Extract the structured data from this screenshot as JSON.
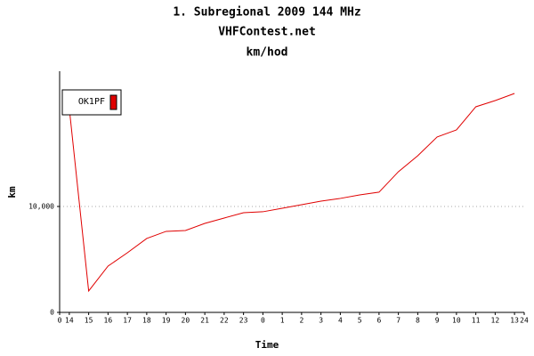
{
  "chart_data": {
    "type": "line",
    "title": "1. Subregional 2009  144 MHz",
    "subtitle": "VHFContest.net",
    "unit_title": "km/hod",
    "x_label": "Time",
    "y_label": "km",
    "x": [
      0.5,
      1.5,
      2.5,
      3.5,
      4.5,
      5.5,
      6.5,
      7.5,
      8.5,
      9.5,
      10.5,
      11.5,
      12.5,
      13.5,
      14.5,
      15.5,
      16.5,
      17.5,
      18.5,
      19.5,
      20.5,
      21.5,
      22.5,
      23.5
    ],
    "series": [
      {
        "name": "OK1PF",
        "color": "#e00000",
        "values": [
          19240,
          2020,
          4370,
          5630,
          6980,
          7650,
          7730,
          8400,
          8910,
          9410,
          9500,
          9830,
          10170,
          10500,
          10760,
          11090,
          11350,
          13280,
          14790,
          16560,
          17230,
          19410,
          20000,
          20670
        ]
      }
    ],
    "xlim": [
      0,
      24
    ],
    "xticks": [
      0,
      {
        "value": 0.5,
        "label": "14"
      },
      {
        "value": 1.5,
        "label": "15"
      },
      {
        "value": 2.5,
        "label": "16"
      },
      {
        "value": 3.5,
        "label": "17"
      },
      {
        "value": 4.5,
        "label": "18"
      },
      {
        "value": 5.5,
        "label": "19"
      },
      {
        "value": 6.5,
        "label": "20"
      },
      {
        "value": 7.5,
        "label": "21"
      },
      {
        "value": 8.5,
        "label": "22"
      },
      {
        "value": 9.5,
        "label": "23"
      },
      {
        "value": 10.5,
        "label": "0"
      },
      {
        "value": 11.5,
        "label": "1"
      },
      {
        "value": 12.5,
        "label": "2"
      },
      {
        "value": 13.5,
        "label": "3"
      },
      {
        "value": 14.5,
        "label": "4"
      },
      {
        "value": 15.5,
        "label": "5"
      },
      {
        "value": 16.5,
        "label": "6"
      },
      {
        "value": 17.5,
        "label": "7"
      },
      {
        "value": 18.5,
        "label": "8"
      },
      {
        "value": 19.5,
        "label": "9"
      },
      {
        "value": 20.5,
        "label": "10"
      },
      {
        "value": 21.5,
        "label": "11"
      },
      {
        "value": 22.5,
        "label": "12"
      },
      {
        "value": 23.5,
        "label": "13"
      },
      24
    ],
    "ylim": [
      0,
      22770
    ],
    "yticks": [
      0,
      {
        "value": 10000,
        "label": "10,000"
      }
    ],
    "grid": true,
    "legend": "top-left"
  }
}
